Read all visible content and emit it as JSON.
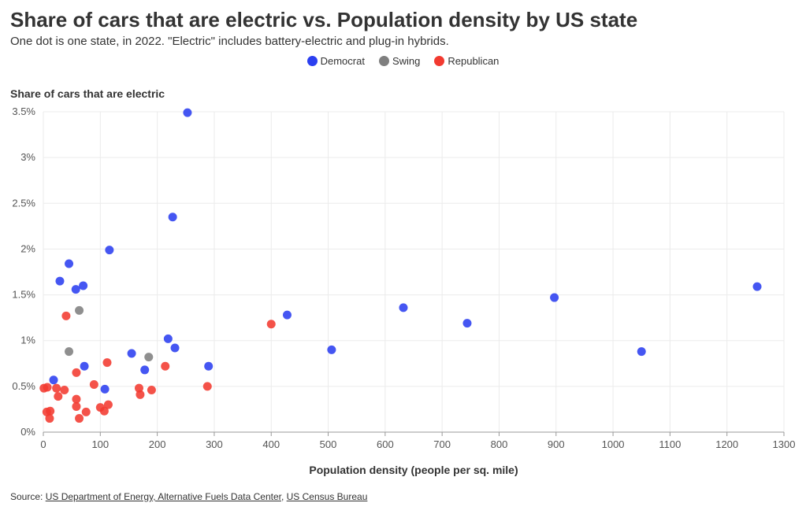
{
  "chart_data": {
    "type": "scatter",
    "title": "Share of cars that are electric vs. Population density by US state",
    "subtitle": "One dot is one state, in 2022. \"Electric\" includes battery-electric and plug-in hybrids.",
    "xlabel": "Population density (people per sq. mile)",
    "ylabel": "Share of cars that are electric",
    "xlim": [
      0,
      1300
    ],
    "ylim": [
      0,
      3.5
    ],
    "x_ticks": [
      0,
      100,
      200,
      300,
      400,
      500,
      600,
      700,
      800,
      900,
      1000,
      1100,
      1200,
      1300
    ],
    "x_tick_labels": [
      "0",
      "100",
      "200",
      "300",
      "400",
      "500",
      "600",
      "700",
      "800",
      "900",
      "1000",
      "1100",
      "1200",
      "1300"
    ],
    "y_ticks": [
      0,
      0.5,
      1,
      1.5,
      2,
      2.5,
      3,
      3.5
    ],
    "y_tick_labels": [
      "0%",
      "0.5%",
      "1%",
      "1.5%",
      "2%",
      "2.5%",
      "3%",
      "3.5%"
    ],
    "grid": true,
    "legend_position": "top-center",
    "series": [
      {
        "name": "Democrat",
        "color": "#2b3ff0",
        "points": [
          [
            253,
            3.49
          ],
          [
            227,
            2.35
          ],
          [
            116,
            1.99
          ],
          [
            45,
            1.84
          ],
          [
            29,
            1.65
          ],
          [
            70,
            1.6
          ],
          [
            57,
            1.56
          ],
          [
            1253,
            1.59
          ],
          [
            897,
            1.47
          ],
          [
            632,
            1.36
          ],
          [
            744,
            1.19
          ],
          [
            428,
            1.28
          ],
          [
            219,
            1.02
          ],
          [
            231,
            0.92
          ],
          [
            506,
            0.9
          ],
          [
            1050,
            0.88
          ],
          [
            155,
            0.86
          ],
          [
            72,
            0.72
          ],
          [
            290,
            0.72
          ],
          [
            178,
            0.68
          ],
          [
            18,
            0.57
          ],
          [
            108,
            0.47
          ]
        ]
      },
      {
        "name": "Swing",
        "color": "#7f7f7f",
        "points": [
          [
            63,
            1.33
          ],
          [
            45,
            0.88
          ],
          [
            185,
            0.82
          ]
        ]
      },
      {
        "name": "Republican",
        "color": "#f23a30",
        "points": [
          [
            40,
            1.27
          ],
          [
            400,
            1.18
          ],
          [
            112,
            0.76
          ],
          [
            214,
            0.72
          ],
          [
            58,
            0.65
          ],
          [
            89,
            0.52
          ],
          [
            288,
            0.5
          ],
          [
            1,
            0.48
          ],
          [
            7,
            0.49
          ],
          [
            23,
            0.48
          ],
          [
            37,
            0.46
          ],
          [
            168,
            0.48
          ],
          [
            190,
            0.46
          ],
          [
            170,
            0.41
          ],
          [
            26,
            0.39
          ],
          [
            58,
            0.36
          ],
          [
            114,
            0.3
          ],
          [
            58,
            0.28
          ],
          [
            100,
            0.27
          ],
          [
            107,
            0.23
          ],
          [
            75,
            0.22
          ],
          [
            6,
            0.22
          ],
          [
            12,
            0.23
          ],
          [
            11,
            0.15
          ],
          [
            63,
            0.15
          ]
        ]
      }
    ]
  },
  "source": {
    "prefix": "Source: ",
    "links": [
      "US Department of Energy, Alternative Fuels Data Center",
      "US Census Bureau"
    ],
    "separator": ", "
  }
}
